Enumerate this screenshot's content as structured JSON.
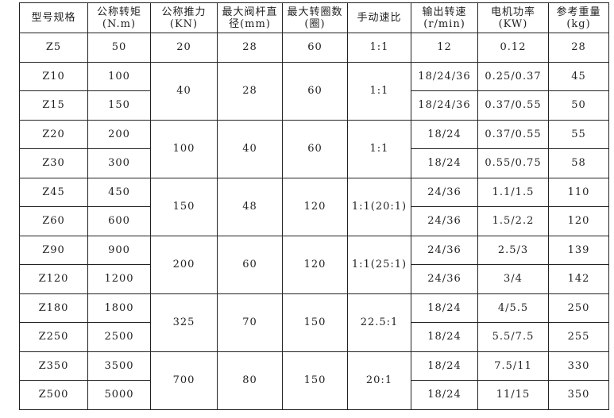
{
  "headers": [
    "型号规格",
    "公称转矩(N.m)",
    "公称推力(KN)",
    "最大阀杆直径(mm)",
    "最大转圈数(圈)",
    "手动速比",
    "输出转速(r/min)",
    "电机功率(KW)",
    "参考重量(kg)"
  ],
  "groups": [
    {
      "thrust": "20",
      "stem": "28",
      "turns": "60",
      "ratio": "1:1",
      "rows": [
        {
          "model": "Z5",
          "torque": "50",
          "speed": "12",
          "power": "0.12",
          "weight": "28"
        }
      ]
    },
    {
      "thrust": "40",
      "stem": "28",
      "turns": "60",
      "ratio": "1:1",
      "rows": [
        {
          "model": "Z10",
          "torque": "100",
          "speed": "18/24/36",
          "power": "0.25/0.37",
          "weight": "45"
        },
        {
          "model": "Z15",
          "torque": "150",
          "speed": "18/24/36",
          "power": "0.37/0.55",
          "weight": "50"
        }
      ]
    },
    {
      "thrust": "100",
      "stem": "40",
      "turns": "60",
      "ratio": "1:1",
      "rows": [
        {
          "model": "Z20",
          "torque": "200",
          "speed": "18/24",
          "power": "0.37/0.55",
          "weight": "55"
        },
        {
          "model": "Z30",
          "torque": "300",
          "speed": "18/24",
          "power": "0.55/0.75",
          "weight": "58"
        }
      ]
    },
    {
      "thrust": "150",
      "stem": "48",
      "turns": "120",
      "ratio": "1:1(20:1)",
      "rows": [
        {
          "model": "Z45",
          "torque": "450",
          "speed": "24/36",
          "power": "1.1/1.5",
          "weight": "110"
        },
        {
          "model": "Z60",
          "torque": "600",
          "speed": "24/36",
          "power": "1.5/2.2",
          "weight": "120"
        }
      ]
    },
    {
      "thrust": "200",
      "stem": "60",
      "turns": "120",
      "ratio": "1:1(25:1)",
      "rows": [
        {
          "model": "Z90",
          "torque": "900",
          "speed": "24/36",
          "power": "2.5/3",
          "weight": "139"
        },
        {
          "model": "Z120",
          "torque": "1200",
          "speed": "24/36",
          "power": "3/4",
          "weight": "142"
        }
      ]
    },
    {
      "thrust": "325",
      "stem": "70",
      "turns": "150",
      "ratio": "22.5:1",
      "rows": [
        {
          "model": "Z180",
          "torque": "1800",
          "speed": "18/24",
          "power": "4/5.5",
          "weight": "250"
        },
        {
          "model": "Z250",
          "torque": "2500",
          "speed": "18/24",
          "power": "5.5/7.5",
          "weight": "255"
        }
      ]
    },
    {
      "thrust": "700",
      "stem": "80",
      "turns": "150",
      "ratio": "20:1",
      "rows": [
        {
          "model": "Z350",
          "torque": "3500",
          "speed": "18/24",
          "power": "7.5/11",
          "weight": "330"
        },
        {
          "model": "Z500",
          "torque": "5000",
          "speed": "18/24",
          "power": "11/15",
          "weight": "350"
        }
      ]
    }
  ]
}
